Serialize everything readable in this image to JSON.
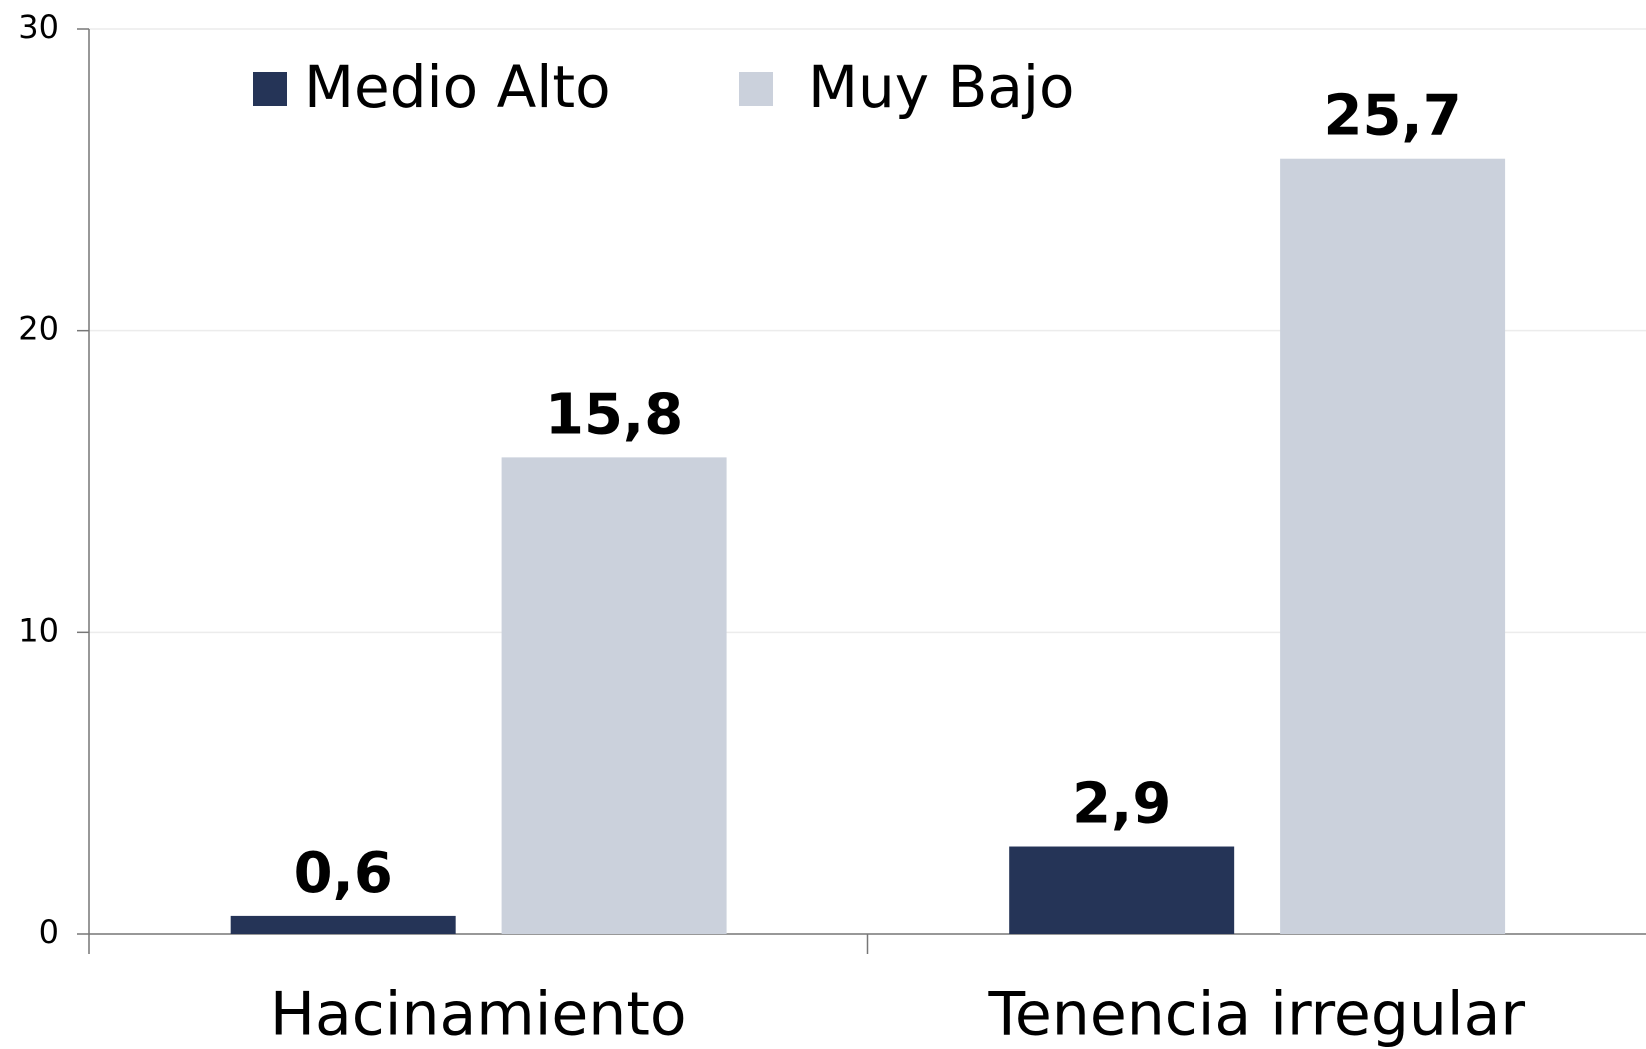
{
  "chart_data": {
    "type": "bar",
    "categories": [
      "Hacinamiento",
      "Tenencia irregular"
    ],
    "series": [
      {
        "name": "Medio Alto",
        "color": "#253457",
        "values": [
          0.6,
          2.9
        ],
        "value_labels": [
          "0,6",
          "2,9"
        ]
      },
      {
        "name": "Muy Bajo",
        "color": "#cbd1dc",
        "values": [
          15.8,
          25.7
        ],
        "value_labels": [
          "15,8",
          "25,7"
        ]
      }
    ],
    "ylim": [
      0,
      30
    ],
    "yticks": [
      0,
      10,
      20,
      30
    ],
    "grid": true,
    "legend": "top-left"
  }
}
